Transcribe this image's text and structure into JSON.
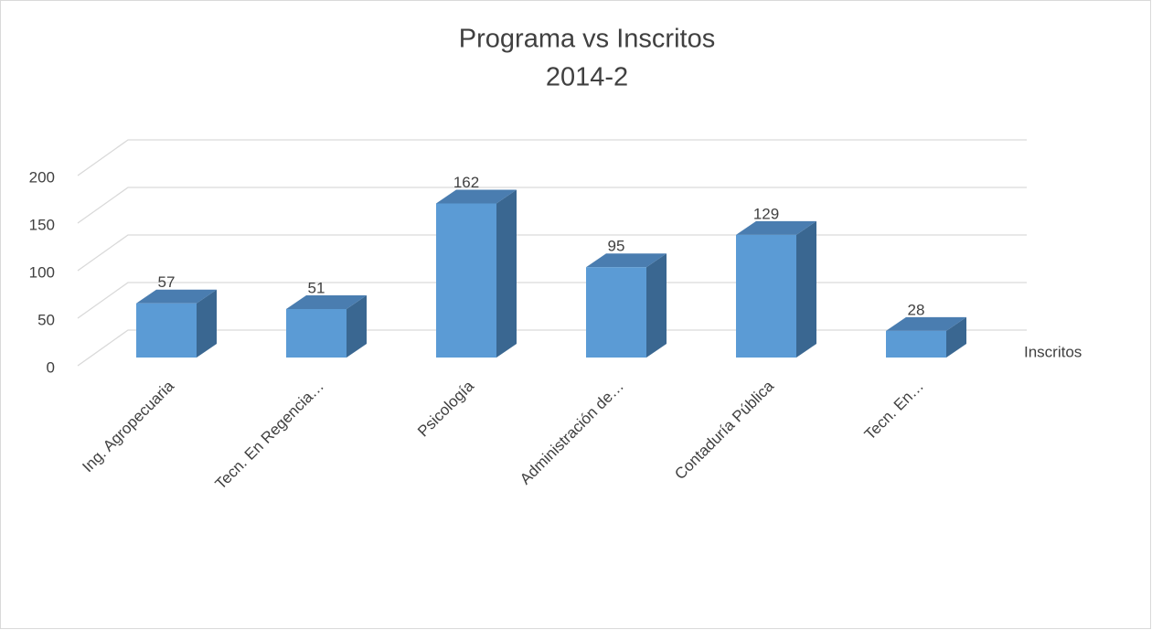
{
  "chart_data": {
    "type": "bar3d",
    "title": "Programa vs Inscritos",
    "subtitle": "2014-2",
    "categories": [
      "Ing. Agropecuaria",
      "Tecn. En Regencia…",
      "Psicología",
      "Administración de…",
      "Contaduría Pública",
      "Tecn. En…"
    ],
    "series": [
      {
        "name": "Inscritos",
        "color": "#5b9bd5",
        "values": [
          57,
          51,
          162,
          95,
          129,
          28
        ]
      }
    ],
    "ylim": [
      0,
      200
    ],
    "yticks": [
      0,
      50,
      100,
      150,
      200
    ],
    "grid": true
  }
}
